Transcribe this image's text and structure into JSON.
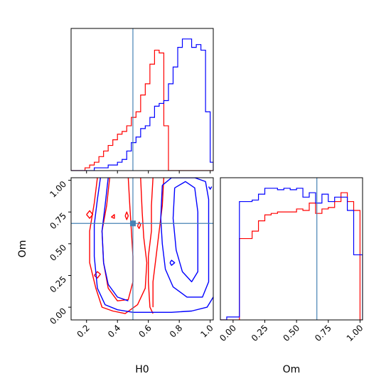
{
  "chart_data": {
    "type": "corner",
    "parameters": [
      "H0",
      "Om"
    ],
    "truths": {
      "H0": 0.5,
      "Om": 0.66
    },
    "truth_color": "#4682b4",
    "series": [
      {
        "color": "#ff0000"
      },
      {
        "color": "#0000ff"
      }
    ],
    "panels": [
      {
        "type": "histogram",
        "param": "H0",
        "xlim": [
          0.1,
          1.02
        ],
        "bin_edges": [
          0.1,
          0.13,
          0.16,
          0.19,
          0.22,
          0.25,
          0.28,
          0.31,
          0.34,
          0.37,
          0.4,
          0.43,
          0.46,
          0.49,
          0.52,
          0.55,
          0.58,
          0.61,
          0.64,
          0.67,
          0.7,
          0.73,
          0.76,
          0.79,
          0.82,
          0.85,
          0.88,
          0.91,
          0.94,
          0.97,
          1.0,
          1.02
        ],
        "series": [
          {
            "color": "#ff0000",
            "counts": [
              0,
              0,
              0,
              1,
              2,
              3,
              5,
              7,
              9,
              11,
              13,
              14,
              16,
              19,
              21,
              27,
              31,
              38,
              43,
              42,
              16,
              0,
              0,
              0,
              0,
              0,
              0,
              0,
              0,
              0,
              0
            ]
          },
          {
            "color": "#0000ff",
            "counts": [
              0,
              0,
              0,
              0,
              0,
              1,
              1,
              1,
              2,
              2,
              3,
              4,
              7,
              10,
              12,
              15,
              16,
              19,
              23,
              24,
              25,
              31,
              37,
              44,
              47,
              47,
              44,
              45,
              43,
              21,
              3
            ]
          }
        ]
      },
      {
        "type": "contour",
        "xparam": "H0",
        "yparam": "Om",
        "xlim": [
          0.1,
          1.02
        ],
        "ylim": [
          -0.1,
          1.02
        ],
        "xticks": [
          "0.2",
          "0.4",
          "0.6",
          "0.8",
          "1.0"
        ],
        "yticks": [
          "0.00",
          "0.25",
          "0.50",
          "0.75",
          "1.00"
        ],
        "series": [
          {
            "color": "#ff0000",
            "paths": [
              [
                [
                  0.27,
                  1.02
                ],
                [
                  0.25,
                  0.82
                ],
                [
                  0.22,
                  0.6
                ],
                [
                  0.22,
                  0.35
                ],
                [
                  0.26,
                  0.15
                ],
                [
                  0.3,
                  0.0
                ],
                [
                  0.37,
                  -0.03
                ],
                [
                  0.45,
                  -0.05
                ],
                [
                  0.53,
                  0.02
                ],
                [
                  0.58,
                  0.15
                ],
                [
                  0.59,
                  0.35
                ],
                [
                  0.57,
                  0.55
                ],
                [
                  0.56,
                  0.75
                ],
                [
                  0.55,
                  1.02
                ]
              ],
              [
                [
                  0.35,
                  1.02
                ],
                [
                  0.33,
                  0.8
                ],
                [
                  0.3,
                  0.6
                ],
                [
                  0.31,
                  0.35
                ],
                [
                  0.34,
                  0.15
                ],
                [
                  0.4,
                  0.05
                ],
                [
                  0.47,
                  0.06
                ],
                [
                  0.5,
                  0.2
                ],
                [
                  0.5,
                  0.4
                ],
                [
                  0.49,
                  0.6
                ],
                [
                  0.48,
                  0.8
                ],
                [
                  0.47,
                  1.02
                ]
              ],
              [
                [
                  0.63,
                  1.02
                ],
                [
                  0.62,
                  0.8
                ],
                [
                  0.62,
                  0.6
                ],
                [
                  0.6,
                  0.4
                ],
                [
                  0.6,
                  0.2
                ],
                [
                  0.61,
                  0.0
                ],
                [
                  0.63,
                  -0.05
                ]
              ],
              [
                [
                  0.7,
                  1.02
                ],
                [
                  0.69,
                  0.8
                ],
                [
                  0.67,
                  0.6
                ],
                [
                  0.65,
                  0.4
                ],
                [
                  0.63,
                  0.2
                ],
                [
                  0.63,
                  0.0
                ]
              ],
              [
                [
                  0.25,
                  0.25
                ],
                [
                  0.27,
                  0.23
                ],
                [
                  0.29,
                  0.26
                ],
                [
                  0.27,
                  0.28
                ],
                [
                  0.25,
                  0.25
                ]
              ],
              [
                [
                  0.2,
                  0.73
                ],
                [
                  0.22,
                  0.7
                ],
                [
                  0.24,
                  0.73
                ],
                [
                  0.22,
                  0.76
                ],
                [
                  0.2,
                  0.73
                ]
              ],
              [
                [
                  0.45,
                  0.72
                ],
                [
                  0.46,
                  0.69
                ],
                [
                  0.47,
                  0.72
                ],
                [
                  0.46,
                  0.75
                ],
                [
                  0.45,
                  0.72
                ]
              ],
              [
                [
                  0.36,
                  0.71
                ],
                [
                  0.38,
                  0.7
                ],
                [
                  0.38,
                  0.73
                ],
                [
                  0.36,
                  0.71
                ]
              ],
              [
                [
                  0.53,
                  0.64
                ],
                [
                  0.54,
                  0.62
                ],
                [
                  0.55,
                  0.65
                ],
                [
                  0.54,
                  0.67
                ],
                [
                  0.53,
                  0.64
                ]
              ]
            ]
          },
          {
            "color": "#0000ff",
            "paths": [
              [
                [
                  0.29,
                  1.02
                ],
                [
                  0.27,
                  0.85
                ],
                [
                  0.25,
                  0.65
                ],
                [
                  0.25,
                  0.4
                ],
                [
                  0.27,
                  0.15
                ],
                [
                  0.32,
                  0.02
                ],
                [
                  0.4,
                  -0.02
                ],
                [
                  0.5,
                  -0.04
                ],
                [
                  0.62,
                  -0.04
                ],
                [
                  0.75,
                  -0.04
                ],
                [
                  0.88,
                  -0.03
                ],
                [
                  0.98,
                  0.0
                ],
                [
                  1.02,
                  0.08
                ]
              ],
              [
                [
                  0.34,
                  1.02
                ],
                [
                  0.32,
                  0.8
                ],
                [
                  0.3,
                  0.6
                ],
                [
                  0.31,
                  0.35
                ],
                [
                  0.34,
                  0.18
                ],
                [
                  0.4,
                  0.08
                ],
                [
                  0.47,
                  0.05
                ]
              ],
              [
                [
                  0.69,
                  0.96
                ],
                [
                  0.68,
                  0.7
                ],
                [
                  0.69,
                  0.5
                ],
                [
                  0.71,
                  0.3
                ],
                [
                  0.76,
                  0.16
                ],
                [
                  0.85,
                  0.08
                ],
                [
                  0.95,
                  0.08
                ],
                [
                  0.99,
                  0.2
                ],
                [
                  0.99,
                  0.5
                ],
                [
                  0.99,
                  0.85
                ],
                [
                  0.97,
                  0.99
                ],
                [
                  0.9,
                  1.02
                ],
                [
                  0.82,
                  1.02
                ],
                [
                  0.75,
                  1.02
                ],
                [
                  0.69,
                  0.96
                ]
              ],
              [
                [
                  0.77,
                  0.94
                ],
                [
                  0.76,
                  0.7
                ],
                [
                  0.78,
                  0.45
                ],
                [
                  0.82,
                  0.28
                ],
                [
                  0.88,
                  0.2
                ],
                [
                  0.92,
                  0.28
                ],
                [
                  0.92,
                  0.5
                ],
                [
                  0.92,
                  0.75
                ],
                [
                  0.9,
                  0.94
                ],
                [
                  0.84,
                  0.99
                ],
                [
                  0.77,
                  0.94
                ]
              ],
              [
                [
                  0.74,
                  0.35
                ],
                [
                  0.75,
                  0.33
                ],
                [
                  0.77,
                  0.35
                ],
                [
                  0.75,
                  0.37
                ],
                [
                  0.74,
                  0.35
                ]
              ],
              [
                [
                  0.99,
                  0.95
                ],
                [
                  1.0,
                  0.93
                ],
                [
                  1.01,
                  0.95
                ]
              ]
            ]
          }
        ]
      },
      {
        "type": "histogram",
        "param": "Om",
        "xlim": [
          -0.1,
          1.02
        ],
        "xticks": [
          "0.00",
          "0.25",
          "0.50",
          "0.75",
          "1.00"
        ],
        "bin_edges": [
          -0.1,
          -0.05,
          0.0,
          0.05,
          0.1,
          0.15,
          0.2,
          0.25,
          0.3,
          0.35,
          0.4,
          0.45,
          0.5,
          0.55,
          0.6,
          0.65,
          0.7,
          0.75,
          0.8,
          0.85,
          0.9,
          0.95,
          1.0,
          1.02
        ],
        "series": [
          {
            "color": "#ff0000",
            "counts": [
              0,
              0,
              0,
              55,
              55,
              60,
              67,
              71,
              72,
              73,
              73,
              73,
              75,
              74,
              79,
              72,
              75,
              76,
              80,
              86,
              80,
              74,
              0
            ]
          },
          {
            "color": "#0000ff",
            "counts": [
              0,
              2,
              2,
              80,
              80,
              81,
              85,
              89,
              89,
              88,
              89,
              88,
              89,
              83,
              86,
              79,
              85,
              80,
              83,
              83,
              74,
              44,
              44
            ]
          }
        ]
      }
    ]
  }
}
